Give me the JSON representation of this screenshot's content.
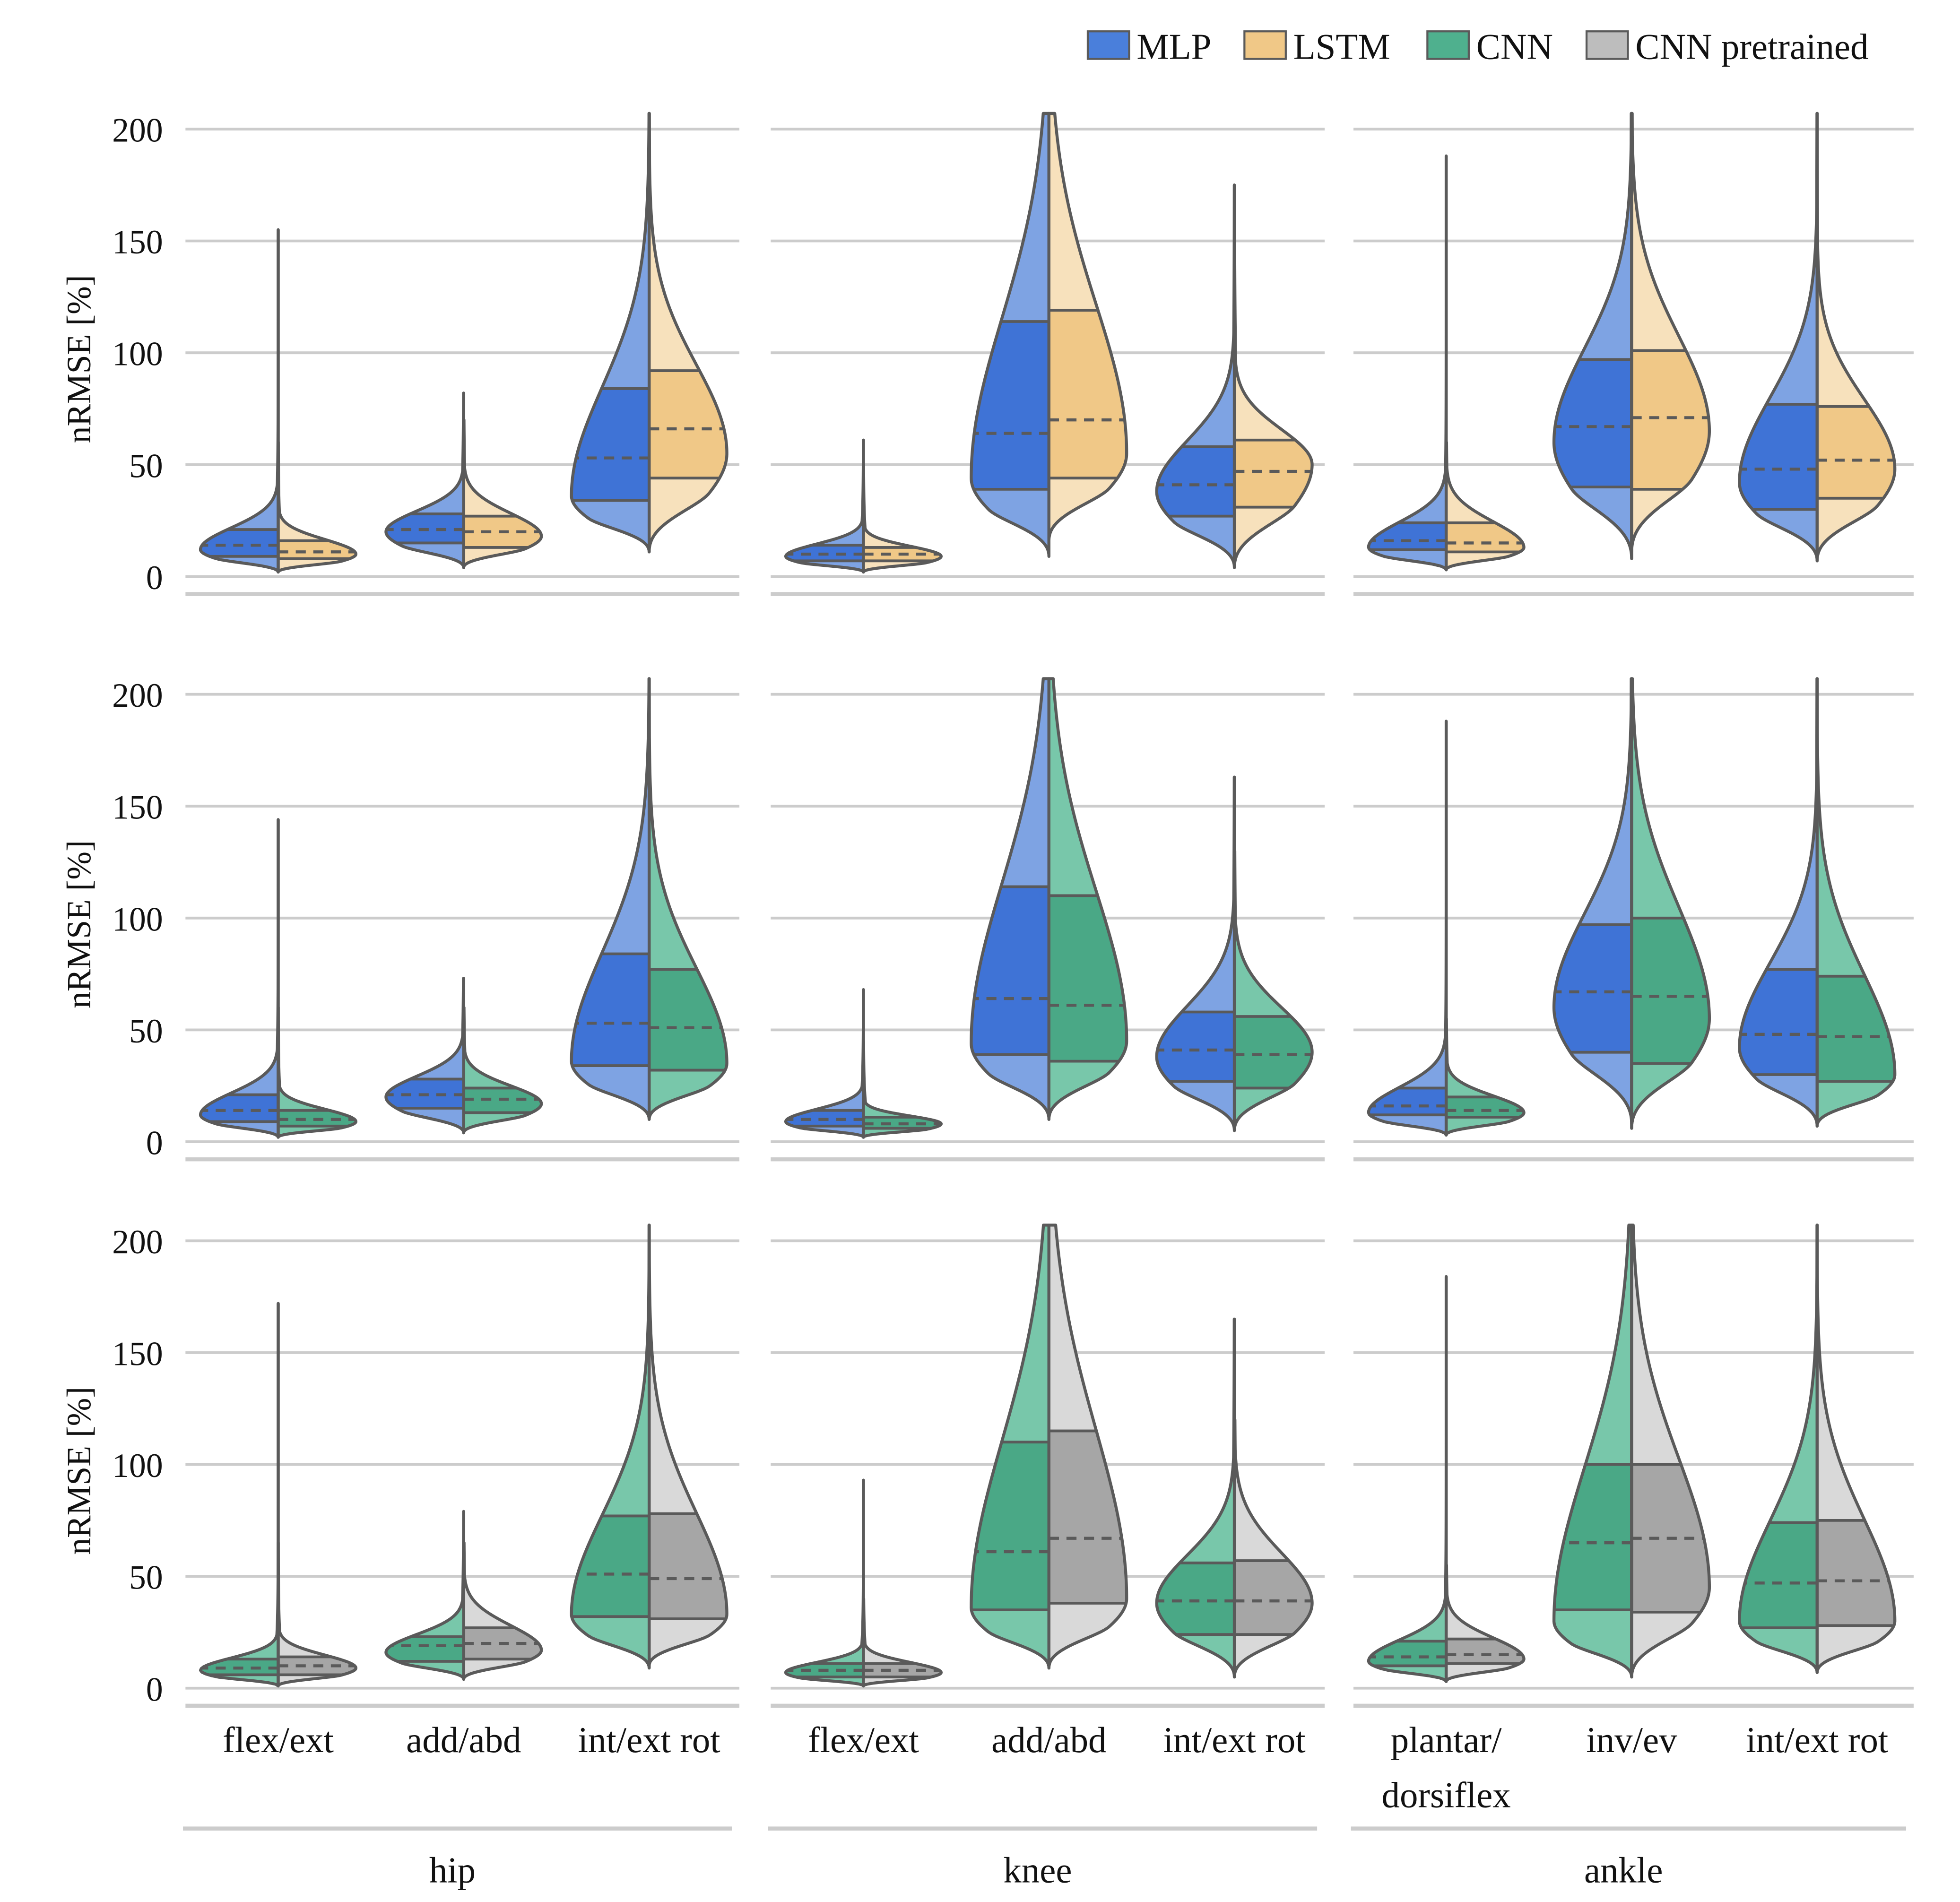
{
  "chart_data": {
    "type": "violin",
    "ylabel": "nRMSE [%]",
    "ylim": [
      0,
      210
    ],
    "yticks": [
      0,
      50,
      100,
      150,
      200
    ],
    "legend": {
      "placement": "top-right",
      "entries": [
        {
          "name": "MLP",
          "color": "#4a7fdb"
        },
        {
          "name": "LSTM",
          "color": "#f0c887"
        },
        {
          "name": "CNN",
          "color": "#4fb08e"
        },
        {
          "name": "CNN pretrained",
          "color": "#bdbdbd"
        }
      ]
    },
    "colors": {
      "MLP": {
        "inner": "#3f73d6",
        "outer": "#7ea3e3"
      },
      "LSTM": {
        "inner": "#f0c887",
        "outer": "#f7e1bc"
      },
      "CNN": {
        "inner": "#4aa886",
        "outer": "#78c7aa"
      },
      "CNN pretrained": {
        "inner": "#a6a6a6",
        "outer": "#d9d9d9"
      }
    },
    "joint_groups": [
      {
        "label": "hip",
        "dofs": [
          "flex/ext",
          "add/abd",
          "int/ext rot"
        ]
      },
      {
        "label": "knee",
        "dofs": [
          "flex/ext",
          "add/abd",
          "int/ext rot"
        ]
      },
      {
        "label": "ankle",
        "dofs": [
          "plantar/\ndorsiflex",
          "inv/ev",
          "int/ext rot"
        ]
      }
    ],
    "rows": [
      {
        "comparison": [
          "MLP",
          "LSTM"
        ],
        "violins": [
          {
            "joint": "hip",
            "dof": "flex/ext",
            "left": {
              "min": 2,
              "q1": 9,
              "median": 14,
              "q3": 21,
              "max": 155,
              "mode": 12
            },
            "right": {
              "min": 2,
              "q1": 8,
              "median": 11,
              "q3": 16,
              "max": 60,
              "mode": 10
            }
          },
          {
            "joint": "hip",
            "dof": "add/abd",
            "left": {
              "min": 4,
              "q1": 15,
              "median": 21,
              "q3": 28,
              "max": 82,
              "mode": 20
            },
            "right": {
              "min": 4,
              "q1": 13,
              "median": 20,
              "q3": 27,
              "max": 70,
              "mode": 18
            }
          },
          {
            "joint": "hip",
            "dof": "int/ext rot",
            "left": {
              "min": 11,
              "q1": 34,
              "median": 53,
              "q3": 84,
              "max": 207,
              "mode": 36
            },
            "right": {
              "min": 11,
              "q1": 44,
              "median": 66,
              "q3": 92,
              "max": 207,
              "mode": 55
            }
          },
          {
            "joint": "knee",
            "dof": "flex/ext",
            "left": {
              "min": 2,
              "q1": 7,
              "median": 10,
              "q3": 14,
              "max": 61,
              "mode": 9
            },
            "right": {
              "min": 2,
              "q1": 7,
              "median": 10,
              "q3": 13,
              "max": 50,
              "mode": 9
            }
          },
          {
            "joint": "knee",
            "dof": "add/abd",
            "left": {
              "min": 9,
              "q1": 39,
              "median": 64,
              "q3": 114,
              "max": 207,
              "mode": 44
            },
            "right": {
              "min": 16,
              "q1": 44,
              "median": 70,
              "q3": 119,
              "max": 207,
              "mode": 55
            }
          },
          {
            "joint": "knee",
            "dof": "int/ext rot",
            "left": {
              "min": 4,
              "q1": 27,
              "median": 41,
              "q3": 58,
              "max": 175,
              "mode": 38
            },
            "right": {
              "min": 4,
              "q1": 31,
              "median": 47,
              "q3": 61,
              "max": 140,
              "mode": 50
            }
          },
          {
            "joint": "ankle",
            "dof": "plantar/\ndorsiflex",
            "left": {
              "min": 3,
              "q1": 12,
              "median": 16,
              "q3": 24,
              "max": 188,
              "mode": 13
            },
            "right": {
              "min": 3,
              "q1": 11,
              "median": 15,
              "q3": 24,
              "max": 60,
              "mode": 13
            }
          },
          {
            "joint": "ankle",
            "dof": "inv/ev",
            "left": {
              "min": 8,
              "q1": 40,
              "median": 67,
              "q3": 97,
              "max": 207,
              "mode": 60
            },
            "right": {
              "min": 11,
              "q1": 39,
              "median": 71,
              "q3": 101,
              "max": 207,
              "mode": 65
            }
          },
          {
            "joint": "ankle",
            "dof": "int/ext rot",
            "left": {
              "min": 7,
              "q1": 30,
              "median": 48,
              "q3": 77,
              "max": 207,
              "mode": 42
            },
            "right": {
              "min": 7,
              "q1": 35,
              "median": 52,
              "q3": 76,
              "max": 207,
              "mode": 48
            }
          }
        ]
      },
      {
        "comparison": [
          "MLP",
          "CNN"
        ],
        "violins": [
          {
            "joint": "hip",
            "dof": "flex/ext",
            "left": {
              "min": 2,
              "q1": 9,
              "median": 14,
              "q3": 21,
              "max": 144,
              "mode": 12
            },
            "right": {
              "min": 2,
              "q1": 7,
              "median": 10,
              "q3": 14,
              "max": 60,
              "mode": 9
            }
          },
          {
            "joint": "hip",
            "dof": "add/abd",
            "left": {
              "min": 4,
              "q1": 15,
              "median": 21,
              "q3": 28,
              "max": 73,
              "mode": 20
            },
            "right": {
              "min": 4,
              "q1": 13,
              "median": 19,
              "q3": 24,
              "max": 60,
              "mode": 17
            }
          },
          {
            "joint": "hip",
            "dof": "int/ext rot",
            "left": {
              "min": 10,
              "q1": 34,
              "median": 53,
              "q3": 84,
              "max": 207,
              "mode": 36
            },
            "right": {
              "min": 10,
              "q1": 32,
              "median": 51,
              "q3": 77,
              "max": 207,
              "mode": 35
            }
          },
          {
            "joint": "knee",
            "dof": "flex/ext",
            "left": {
              "min": 2,
              "q1": 7,
              "median": 10,
              "q3": 14,
              "max": 68,
              "mode": 9
            },
            "right": {
              "min": 2,
              "q1": 6,
              "median": 8,
              "q3": 11,
              "max": 45,
              "mode": 8
            }
          },
          {
            "joint": "knee",
            "dof": "add/abd",
            "left": {
              "min": 10,
              "q1": 39,
              "median": 64,
              "q3": 114,
              "max": 207,
              "mode": 44
            },
            "right": {
              "min": 10,
              "q1": 36,
              "median": 61,
              "q3": 110,
              "max": 207,
              "mode": 45
            }
          },
          {
            "joint": "knee",
            "dof": "int/ext rot",
            "left": {
              "min": 5,
              "q1": 27,
              "median": 41,
              "q3": 58,
              "max": 163,
              "mode": 38
            },
            "right": {
              "min": 5,
              "q1": 24,
              "median": 39,
              "q3": 56,
              "max": 130,
              "mode": 40
            }
          },
          {
            "joint": "ankle",
            "dof": "plantar/\ndorsiflex",
            "left": {
              "min": 3,
              "q1": 12,
              "median": 16,
              "q3": 24,
              "max": 188,
              "mode": 13
            },
            "right": {
              "min": 3,
              "q1": 11,
              "median": 14,
              "q3": 20,
              "max": 55,
              "mode": 13
            }
          },
          {
            "joint": "ankle",
            "dof": "inv/ev",
            "left": {
              "min": 8,
              "q1": 40,
              "median": 67,
              "q3": 97,
              "max": 207,
              "mode": 60
            },
            "right": {
              "min": 6,
              "q1": 35,
              "median": 65,
              "q3": 100,
              "max": 207,
              "mode": 55
            }
          },
          {
            "joint": "ankle",
            "dof": "int/ext rot",
            "left": {
              "min": 7,
              "q1": 30,
              "median": 48,
              "q3": 77,
              "max": 207,
              "mode": 42
            },
            "right": {
              "min": 7,
              "q1": 27,
              "median": 47,
              "q3": 74,
              "max": 207,
              "mode": 30
            }
          }
        ]
      },
      {
        "comparison": [
          "CNN",
          "CNN pretrained"
        ],
        "violins": [
          {
            "joint": "hip",
            "dof": "flex/ext",
            "left": {
              "min": 1,
              "q1": 6,
              "median": 9,
              "q3": 13,
              "max": 172,
              "mode": 8
            },
            "right": {
              "min": 1,
              "q1": 6,
              "median": 10,
              "q3": 14,
              "max": 65,
              "mode": 9
            }
          },
          {
            "joint": "hip",
            "dof": "add/abd",
            "left": {
              "min": 4,
              "q1": 12,
              "median": 19,
              "q3": 23,
              "max": 79,
              "mode": 16
            },
            "right": {
              "min": 4,
              "q1": 13,
              "median": 20,
              "q3": 27,
              "max": 65,
              "mode": 17
            }
          },
          {
            "joint": "hip",
            "dof": "int/ext rot",
            "left": {
              "min": 9,
              "q1": 32,
              "median": 51,
              "q3": 77,
              "max": 207,
              "mode": 33
            },
            "right": {
              "min": 10,
              "q1": 31,
              "median": 49,
              "q3": 78,
              "max": 207,
              "mode": 33
            }
          },
          {
            "joint": "knee",
            "dof": "flex/ext",
            "left": {
              "min": 1,
              "q1": 5,
              "median": 8,
              "q3": 11,
              "max": 93,
              "mode": 7
            },
            "right": {
              "min": 1,
              "q1": 5,
              "median": 8,
              "q3": 11,
              "max": 40,
              "mode": 7
            }
          },
          {
            "joint": "knee",
            "dof": "add/abd",
            "left": {
              "min": 9,
              "q1": 35,
              "median": 61,
              "q3": 110,
              "max": 207,
              "mode": 36
            },
            "right": {
              "min": 9,
              "q1": 38,
              "median": 67,
              "q3": 115,
              "max": 207,
              "mode": 40
            }
          },
          {
            "joint": "knee",
            "dof": "int/ext rot",
            "left": {
              "min": 5,
              "q1": 24,
              "median": 39,
              "q3": 56,
              "max": 165,
              "mode": 38
            },
            "right": {
              "min": 5,
              "q1": 24,
              "median": 39,
              "q3": 57,
              "max": 120,
              "mode": 38
            }
          },
          {
            "joint": "ankle",
            "dof": "plantar/\ndorsiflex",
            "left": {
              "min": 3,
              "q1": 10,
              "median": 14,
              "q3": 21,
              "max": 184,
              "mode": 12
            },
            "right": {
              "min": 3,
              "q1": 11,
              "median": 15,
              "q3": 22,
              "max": 55,
              "mode": 13
            }
          },
          {
            "joint": "ankle",
            "dof": "inv/ev",
            "left": {
              "min": 5,
              "q1": 35,
              "median": 65,
              "q3": 100,
              "max": 207,
              "mode": 30
            },
            "right": {
              "min": 5,
              "q1": 34,
              "median": 67,
              "q3": 100,
              "max": 207,
              "mode": 45
            }
          },
          {
            "joint": "ankle",
            "dof": "int/ext rot",
            "left": {
              "min": 7,
              "q1": 27,
              "median": 47,
              "q3": 74,
              "max": 207,
              "mode": 30
            },
            "right": {
              "min": 7,
              "q1": 28,
              "median": 48,
              "q3": 75,
              "max": 207,
              "mode": 30
            }
          }
        ]
      }
    ]
  }
}
